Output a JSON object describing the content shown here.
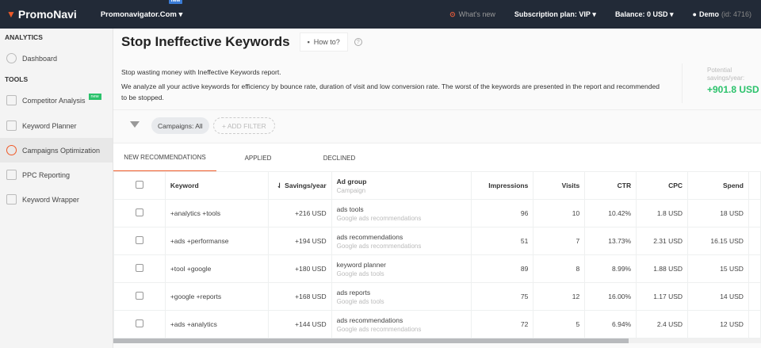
{
  "header": {
    "logo": "PromoNavi",
    "site": "Promonavigator.Com",
    "site_badge": "new",
    "whats_new": "What's new",
    "subscription": "Subscription plan: VIP",
    "balance": "Balance: 0  USD",
    "user": "Demo",
    "user_id": "(id: 4716)"
  },
  "sidebar": {
    "analytics_heading": "ANALYTICS",
    "tools_heading": "TOOLS",
    "items": [
      {
        "label": "Dashboard",
        "icon": "dashboard-icon"
      },
      {
        "label": "Competitor Analysis",
        "icon": "competitor-icon",
        "badge": "new"
      },
      {
        "label": "Keyword Planner",
        "icon": "planner-icon"
      },
      {
        "label": "Campaigns Optimization",
        "icon": "gear-icon",
        "active": true
      },
      {
        "label": "PPC Reporting",
        "icon": "reporting-icon"
      },
      {
        "label": "Keyword Wrapper",
        "icon": "wrapper-icon"
      }
    ]
  },
  "page": {
    "title": "Stop Ineffective Keywords",
    "how_to": "How to?",
    "help": "?",
    "desc1": "Stop wasting money with Ineffective Keywords report.",
    "desc2": "We analyze all your active keywords for efficiency by bounce rate, duration of visit and low conversion rate. The worst of the keywords are presented in the report and recommended to be stopped.",
    "savings_label": "Potential savings/year:",
    "savings_value": "+901.8 USD",
    "accent": "#f05a28",
    "green": "#2bc26b"
  },
  "filters": {
    "campaigns": "Campaigns: All",
    "add": "+ ADD FILTER"
  },
  "tabs": [
    "NEW RECOMMENDATIONS",
    "APPLIED",
    "DECLINED"
  ],
  "table": {
    "headers": {
      "keyword": "Keyword",
      "savings": "Savings/year",
      "adgroup": "Ad group",
      "campaign": "Campaign",
      "impressions": "Impressions",
      "visits": "Visits",
      "ctr": "CTR",
      "cpc": "CPC",
      "spend": "Spend"
    },
    "rows": [
      {
        "keyword": "+analytics +tools",
        "savings": "+216 USD",
        "adgroup": "ads tools",
        "campaign": "Google ads recommendations",
        "impressions": "96",
        "visits": "10",
        "ctr": "10.42%",
        "cpc": "1.8 USD",
        "spend": "18 USD"
      },
      {
        "keyword": "+ads +performanse",
        "savings": "+194 USD",
        "adgroup": "ads recommendations",
        "campaign": "Google ads recommendations",
        "impressions": "51",
        "visits": "7",
        "ctr": "13.73%",
        "cpc": "2.31 USD",
        "spend": "16.15 USD"
      },
      {
        "keyword": "+tool +google",
        "savings": "+180 USD",
        "adgroup": "keyword planner",
        "campaign": "Google ads tools",
        "impressions": "89",
        "visits": "8",
        "ctr": "8.99%",
        "cpc": "1.88 USD",
        "spend": "15 USD"
      },
      {
        "keyword": "+google +reports",
        "savings": "+168 USD",
        "adgroup": "ads reports",
        "campaign": "Google ads tools",
        "impressions": "75",
        "visits": "12",
        "ctr": "16.00%",
        "cpc": "1.17 USD",
        "spend": "14 USD"
      },
      {
        "keyword": "+ads +analytics",
        "savings": "+144 USD",
        "adgroup": "ads recommendations",
        "campaign": "Google ads recommendations",
        "impressions": "72",
        "visits": "5",
        "ctr": "6.94%",
        "cpc": "2.4 USD",
        "spend": "12 USD"
      }
    ]
  }
}
